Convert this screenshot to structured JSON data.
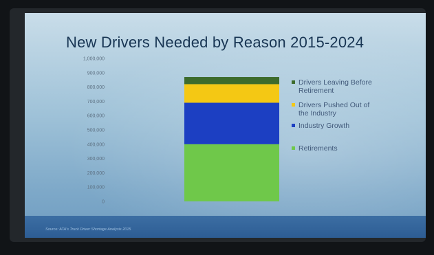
{
  "slide": {
    "title": "New Drivers Needed by Reason 2015-2024",
    "source": "Source: ATA's Truck Driver Shortage Analysis 2015"
  },
  "colors": {
    "slide_top": "#c9dde9",
    "slide_bottom": "#7da8c8",
    "footer_band": "#2d5d94",
    "title_text": "#183553"
  },
  "chart_data": {
    "type": "bar",
    "stacked": true,
    "title": "New Drivers Needed by Reason 2015-2024",
    "xlabel": "",
    "ylabel": "",
    "ylim": [
      0,
      1000000
    ],
    "yticks": [
      0,
      100000,
      200000,
      300000,
      400000,
      500000,
      600000,
      700000,
      800000,
      900000,
      1000000
    ],
    "ytick_labels": [
      "0",
      "100,000",
      "200,000",
      "300,000",
      "400,000",
      "500,000",
      "600,000",
      "700,000",
      "800,000",
      "900,000",
      "1,000,000"
    ],
    "grid": false,
    "legend_position": "right",
    "categories": [
      ""
    ],
    "series": [
      {
        "name": "Retirements",
        "values": [
          400000
        ],
        "color": "#6fc84a"
      },
      {
        "name": "Industry Growth",
        "values": [
          290000
        ],
        "color": "#1c3fc2"
      },
      {
        "name": "Drivers Pushed Out of the Industry",
        "values": [
          130000
        ],
        "color": "#f4c814"
      },
      {
        "name": "Drivers Leaving Before Retirement",
        "values": [
          50000
        ],
        "color": "#3d6b2c"
      }
    ],
    "legend": [
      {
        "lines": [
          "Drivers Leaving Before",
          "Retirement"
        ],
        "color": "#3d6b2c"
      },
      {
        "lines": [
          "Drivers Pushed Out of",
          "the Industry"
        ],
        "color": "#f4c814"
      },
      {
        "lines": [
          "Industry Growth"
        ],
        "color": "#1c3fc2"
      },
      {
        "lines": [
          "Retirements"
        ],
        "color": "#6fc84a"
      }
    ]
  }
}
